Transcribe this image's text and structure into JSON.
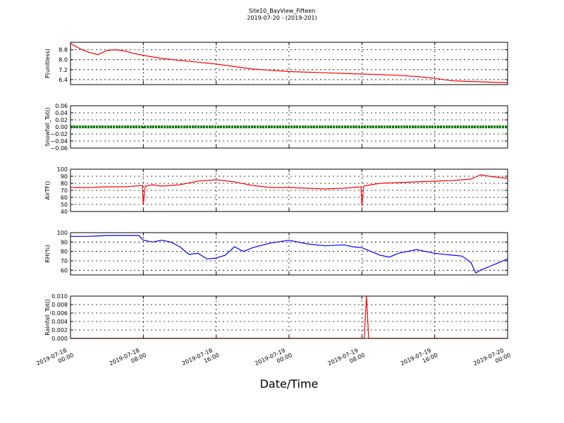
{
  "title": "Site10_BayView_Fifteen",
  "subtitle": "2019-07-20 - (2019-201)",
  "xlabel": "Date/Time",
  "x_tick_labels": [
    [
      "2019-07-18",
      "00:00"
    ],
    [
      "2019-07-18",
      "08:00"
    ],
    [
      "2019-07-18",
      "16:00"
    ],
    [
      "2019-07-19",
      "00:00"
    ],
    [
      "2019-07-19",
      "08:00"
    ],
    [
      "2019-07-19",
      "16:00"
    ],
    [
      "2019-07-20",
      "00:00"
    ]
  ],
  "chart_data": [
    {
      "type": "line",
      "ylabel": "P(unitless)",
      "ylim": [
        6.0,
        9.4
      ],
      "yticks": [
        "6.4",
        "7.2",
        "8.0",
        "8.8"
      ],
      "color": "#ff0000",
      "x_hours": [
        0,
        1,
        2,
        3,
        4,
        5,
        6,
        7,
        8,
        10,
        12,
        14,
        16,
        18,
        20,
        22,
        24,
        26,
        28,
        30,
        32,
        34,
        36,
        38,
        40,
        42,
        44,
        46,
        48
      ],
      "values": [
        9.3,
        8.9,
        8.6,
        8.4,
        8.75,
        8.8,
        8.7,
        8.5,
        8.35,
        8.1,
        7.95,
        7.8,
        7.65,
        7.45,
        7.25,
        7.15,
        7.05,
        7.0,
        6.95,
        6.9,
        6.85,
        6.8,
        6.75,
        6.65,
        6.5,
        6.3,
        6.25,
        6.2,
        6.15
      ]
    },
    {
      "type": "line",
      "ylabel": "Snowfall_Tot()",
      "ylim": [
        -0.06,
        0.06
      ],
      "yticks": [
        "−0.06",
        "−0.04",
        "−0.02",
        "0.00",
        "0.02",
        "0.04",
        "0.06"
      ],
      "color": "#008000",
      "x_hours": [
        0,
        48
      ],
      "values": [
        0.0,
        0.0
      ]
    },
    {
      "type": "line",
      "ylabel": "AirTF()",
      "ylim": [
        40,
        100
      ],
      "yticks": [
        "40",
        "50",
        "60",
        "70",
        "80",
        "90",
        "100"
      ],
      "color": "#ff0000",
      "x_hours": [
        0,
        2,
        4,
        6,
        7.9,
        8,
        8.2,
        9,
        10,
        12,
        14,
        16,
        18,
        20,
        22,
        24,
        26,
        28,
        30,
        31.9,
        32,
        32.2,
        33,
        34,
        36,
        38,
        40,
        42,
        44,
        45,
        46,
        48
      ],
      "values": [
        74,
        74,
        75,
        75,
        77,
        49,
        76,
        78,
        76,
        78,
        83,
        85,
        82,
        77,
        74,
        74,
        73,
        72,
        73,
        75,
        48,
        76,
        78,
        80,
        81,
        82,
        83,
        84,
        86,
        92,
        90,
        87
      ]
    },
    {
      "type": "line",
      "ylabel": "RH(%)",
      "ylim": [
        55,
        100
      ],
      "yticks": [
        "60",
        "70",
        "80",
        "90",
        "100"
      ],
      "color": "#0000ff",
      "x_hours": [
        0,
        2,
        4,
        6,
        7.5,
        8,
        9,
        10,
        11,
        12,
        13,
        14,
        15,
        16,
        17,
        18,
        19,
        20,
        22,
        24,
        26,
        28,
        30,
        31,
        32,
        33,
        34,
        35,
        36,
        37,
        38,
        39,
        40,
        41,
        42,
        43,
        44,
        44.5,
        45,
        46,
        47,
        48
      ],
      "values": [
        96,
        96,
        97,
        97,
        97,
        92,
        90,
        92,
        90,
        85,
        77,
        78,
        72,
        73,
        76,
        85,
        80,
        84,
        89,
        92,
        88,
        86,
        87,
        85,
        84,
        80,
        76,
        74,
        78,
        80,
        82,
        80,
        78,
        77,
        76,
        75,
        68,
        57,
        60,
        64,
        68,
        72
      ]
    },
    {
      "type": "line",
      "ylabel": "Rainfall_Tot()",
      "ylim": [
        0,
        0.01
      ],
      "yticks": [
        "0.000",
        "0.002",
        "0.004",
        "0.006",
        "0.008",
        "0.010"
      ],
      "color": "#ff0000",
      "x_hours": [
        0,
        32.25,
        32.5,
        32.75,
        48
      ],
      "values": [
        0,
        0,
        0.01,
        0,
        0
      ]
    }
  ]
}
